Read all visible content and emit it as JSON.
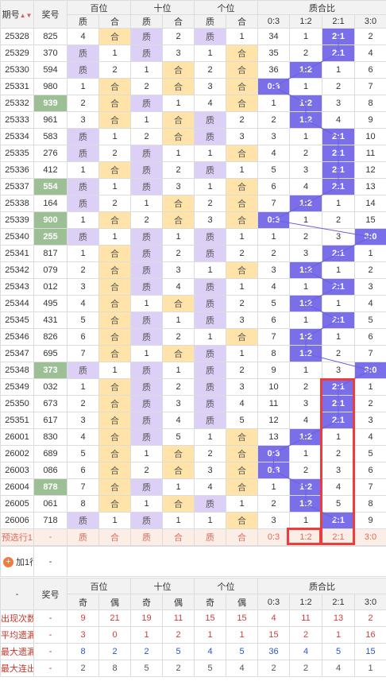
{
  "header": {
    "issue": "期号",
    "number": "奖号",
    "hundreds": "百位",
    "tens": "十位",
    "units": "个位",
    "ratio": "质合比",
    "prime": "质",
    "composite": "合",
    "ratio_cols": [
      "0:3",
      "1:2",
      "2:1",
      "3:0"
    ]
  },
  "rows": [
    {
      "issue": "25328",
      "num": "825",
      "d": [
        "4",
        "合",
        "质",
        "2",
        "质",
        "1"
      ],
      "r": [
        "34",
        "1",
        "2:1",
        "2"
      ],
      "hl": [
        2,
        5
      ]
    },
    {
      "issue": "25329",
      "num": "370",
      "d": [
        "质",
        "1",
        "质",
        "3",
        "1",
        "合"
      ],
      "r": [
        "35",
        "2",
        "2:1",
        "4"
      ],
      "hl": [
        0,
        2
      ]
    },
    {
      "issue": "25330",
      "num": "594",
      "d": [
        "质",
        "2",
        "1",
        "合",
        "2",
        "合"
      ],
      "r": [
        "36",
        "1:2",
        "1",
        "6"
      ],
      "hl": [
        0,
        3
      ]
    },
    {
      "issue": "25331",
      "num": "980",
      "d": [
        "1",
        "合",
        "2",
        "合",
        "3",
        "合"
      ],
      "r": [
        "0:3",
        "1",
        "2",
        "7"
      ],
      "hl": [
        1,
        3
      ]
    },
    {
      "issue": "25332",
      "num": "939",
      "d": [
        "2",
        "合",
        "质",
        "1",
        "4",
        "合"
      ],
      "r": [
        "1",
        "1:2",
        "3",
        "8"
      ],
      "hl": [
        1,
        2
      ]
    },
    {
      "issue": "25333",
      "num": "961",
      "d": [
        "3",
        "合",
        "1",
        "合",
        "质",
        "2"
      ],
      "r": [
        "2",
        "1:2",
        "4",
        "9"
      ],
      "hl": [
        1,
        3
      ]
    },
    {
      "issue": "25334",
      "num": "583",
      "d": [
        "质",
        "1",
        "2",
        "合",
        "质",
        "3"
      ],
      "r": [
        "3",
        "1",
        "2:1",
        "10"
      ],
      "hl": [
        0,
        3
      ]
    },
    {
      "issue": "25335",
      "num": "276",
      "d": [
        "质",
        "2",
        "质",
        "1",
        "1",
        "合"
      ],
      "r": [
        "4",
        "2",
        "2:1",
        "11"
      ],
      "hl": [
        0,
        2
      ]
    },
    {
      "issue": "25336",
      "num": "412",
      "d": [
        "1",
        "合",
        "质",
        "2",
        "质",
        "1"
      ],
      "r": [
        "5",
        "3",
        "2:1",
        "12"
      ],
      "hl": [
        1,
        2
      ]
    },
    {
      "issue": "25337",
      "num": "554",
      "d": [
        "质",
        "1",
        "质",
        "3",
        "1",
        "合"
      ],
      "r": [
        "6",
        "4",
        "2:1",
        "13"
      ],
      "hl": [
        0,
        2
      ]
    },
    {
      "issue": "25338",
      "num": "164",
      "d": [
        "质",
        "2",
        "1",
        "合",
        "2",
        "合"
      ],
      "r": [
        "7",
        "1:2",
        "1",
        "14"
      ],
      "hl": [
        0,
        3
      ]
    },
    {
      "issue": "25339",
      "num": "900",
      "d": [
        "1",
        "合",
        "2",
        "合",
        "3",
        "合"
      ],
      "r": [
        "0:3",
        "1",
        "2",
        "15"
      ],
      "hl": [
        1,
        3
      ]
    },
    {
      "issue": "25340",
      "num": "255",
      "d": [
        "质",
        "1",
        "质",
        "1",
        "质",
        "1"
      ],
      "r": [
        "1",
        "2",
        "3",
        "3:0"
      ],
      "hl": [
        0,
        2
      ]
    },
    {
      "issue": "25341",
      "num": "817",
      "d": [
        "1",
        "合",
        "质",
        "2",
        "质",
        "2"
      ],
      "r": [
        "2",
        "3",
        "2:1",
        "1"
      ],
      "hl": [
        1,
        2
      ]
    },
    {
      "issue": "25342",
      "num": "079",
      "d": [
        "2",
        "合",
        "质",
        "3",
        "1",
        "合"
      ],
      "r": [
        "3",
        "1:2",
        "1",
        "2"
      ],
      "hl": [
        1,
        2
      ]
    },
    {
      "issue": "25343",
      "num": "012",
      "d": [
        "3",
        "合",
        "质",
        "4",
        "质",
        "1"
      ],
      "r": [
        "4",
        "1",
        "2:1",
        "3"
      ],
      "hl": [
        1,
        2
      ]
    },
    {
      "issue": "25344",
      "num": "495",
      "d": [
        "4",
        "合",
        "1",
        "合",
        "质",
        "2"
      ],
      "r": [
        "5",
        "1:2",
        "1",
        "4"
      ],
      "hl": [
        1,
        3
      ]
    },
    {
      "issue": "25345",
      "num": "431",
      "d": [
        "5",
        "合",
        "质",
        "1",
        "质",
        "3"
      ],
      "r": [
        "6",
        "1",
        "2:1",
        "5"
      ],
      "hl": [
        1,
        2
      ]
    },
    {
      "issue": "25346",
      "num": "826",
      "d": [
        "6",
        "合",
        "质",
        "2",
        "1",
        "合"
      ],
      "r": [
        "7",
        "1:2",
        "1",
        "6"
      ],
      "hl": [
        1,
        2
      ]
    },
    {
      "issue": "25347",
      "num": "695",
      "d": [
        "7",
        "合",
        "1",
        "合",
        "质",
        "1"
      ],
      "r": [
        "8",
        "1:2",
        "2",
        "7"
      ],
      "hl": [
        1,
        3
      ]
    },
    {
      "issue": "25348",
      "num": "373",
      "d": [
        "质",
        "1",
        "质",
        "1",
        "质",
        "2"
      ],
      "r": [
        "9",
        "1",
        "3",
        "3:0"
      ],
      "hl": [
        0,
        2
      ]
    },
    {
      "issue": "25349",
      "num": "032",
      "d": [
        "1",
        "合",
        "质",
        "2",
        "质",
        "3"
      ],
      "r": [
        "10",
        "2",
        "2:1",
        "1"
      ],
      "hl": [
        1,
        2
      ]
    },
    {
      "issue": "25350",
      "num": "673",
      "d": [
        "2",
        "合",
        "质",
        "3",
        "质",
        "4"
      ],
      "r": [
        "11",
        "3",
        "2:1",
        "2"
      ],
      "hl": [
        1,
        2
      ]
    },
    {
      "issue": "25351",
      "num": "617",
      "d": [
        "3",
        "合",
        "质",
        "4",
        "质",
        "5"
      ],
      "r": [
        "12",
        "4",
        "2:1",
        "3"
      ],
      "hl": [
        1,
        2
      ]
    },
    {
      "issue": "26001",
      "num": "830",
      "d": [
        "4",
        "合",
        "质",
        "5",
        "1",
        "合"
      ],
      "r": [
        "13",
        "1:2",
        "1",
        "4"
      ],
      "hl": [
        1,
        2
      ]
    },
    {
      "issue": "26002",
      "num": "689",
      "d": [
        "5",
        "合",
        "1",
        "合",
        "2",
        "合"
      ],
      "r": [
        "0:3",
        "1",
        "2",
        "5"
      ],
      "hl": [
        1,
        3
      ]
    },
    {
      "issue": "26003",
      "num": "086",
      "d": [
        "6",
        "合",
        "2",
        "合",
        "3",
        "合"
      ],
      "r": [
        "0:3",
        "2",
        "3",
        "6"
      ],
      "hl": [
        1,
        3
      ]
    },
    {
      "issue": "26004",
      "num": "878",
      "d": [
        "7",
        "合",
        "质",
        "1",
        "4",
        "合"
      ],
      "r": [
        "1",
        "1:2",
        "4",
        "7"
      ],
      "hl": [
        1,
        2
      ]
    },
    {
      "issue": "26005",
      "num": "061",
      "d": [
        "8",
        "合",
        "1",
        "合",
        "质",
        "1"
      ],
      "r": [
        "2",
        "1:2",
        "5",
        "8"
      ],
      "hl": [
        1,
        3
      ]
    },
    {
      "issue": "26006",
      "num": "718",
      "d": [
        "质",
        "1",
        "质",
        "1",
        "1",
        "合"
      ],
      "r": [
        "3",
        "1",
        "2:1",
        "9"
      ],
      "hl": [
        0,
        2
      ]
    }
  ],
  "preselect": {
    "label": "预选行1",
    "num": "-",
    "cells": [
      "质",
      "合",
      "质",
      "合",
      "质",
      "合"
    ],
    "ratio": [
      "0:3",
      "1:2",
      "2:1",
      "3:0"
    ]
  },
  "add_row": {
    "label": "加1行",
    "value": "-"
  },
  "stats": {
    "dash": "-",
    "number": "奖号",
    "hundreds": "百位",
    "tens": "十位",
    "units": "个位",
    "ratio": "质合比",
    "odd": "奇",
    "even": "偶",
    "ratio_cols": [
      "0:3",
      "1:2",
      "2:1",
      "3:0"
    ],
    "rows": [
      {
        "label": "出现次数",
        "num": "-",
        "vals": [
          "9",
          "21",
          "19",
          "11",
          "15",
          "15",
          "4",
          "11",
          "13",
          "2"
        ],
        "color": "#d23b3b"
      },
      {
        "label": "平均遗漏",
        "num": "-",
        "vals": [
          "3",
          "0",
          "1",
          "2",
          "1",
          "1",
          "15",
          "2",
          "1",
          "16"
        ],
        "color": "#d23b3b"
      },
      {
        "label": "最大遗漏",
        "num": "-",
        "vals": [
          "8",
          "2",
          "2",
          "5",
          "4",
          "5",
          "36",
          "4",
          "5",
          "15"
        ],
        "color": "#2b56c9"
      },
      {
        "label": "最大连出",
        "num": "-",
        "vals": [
          "2",
          "8",
          "5",
          "2",
          "5",
          "4",
          "2",
          "2",
          "4",
          "1"
        ],
        "color": "#555555"
      }
    ]
  },
  "colors": {
    "prime": "#ddd0f7",
    "composite": "#ffe3a8",
    "accent": "#7a6fe8",
    "highlight": "#9cbf95",
    "box": "#ec3c3c"
  }
}
